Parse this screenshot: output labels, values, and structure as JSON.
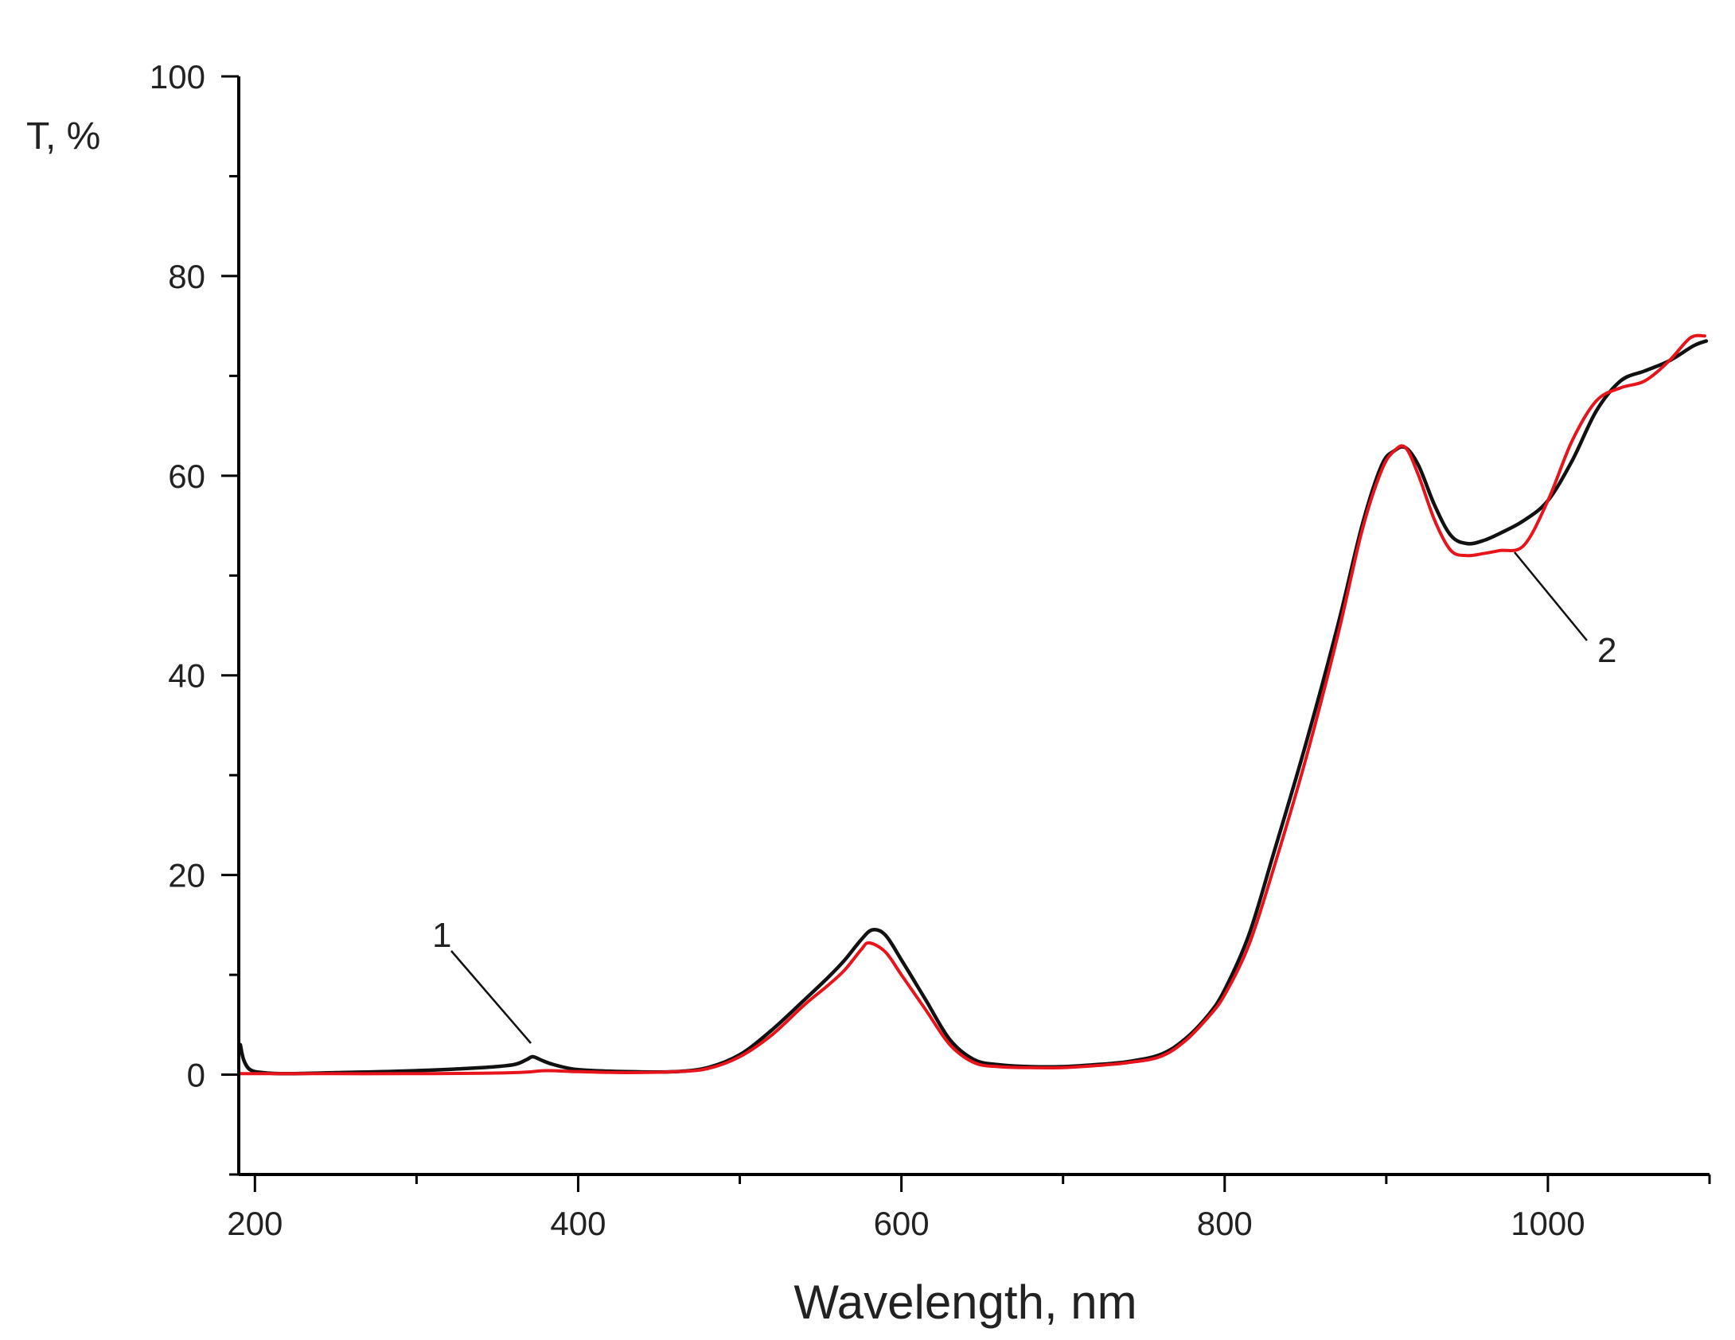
{
  "chart_data": {
    "type": "line",
    "xlabel": "Wavelength, nm",
    "ylabel": "T, %",
    "xlim": [
      190,
      1100
    ],
    "ylim": [
      -10,
      100
    ],
    "x_ticks": [
      200,
      400,
      600,
      800,
      1000
    ],
    "y_ticks": [
      0,
      20,
      40,
      60,
      80,
      100
    ],
    "x_minor_step": 100,
    "y_minor_step": 10,
    "grid": false,
    "colors": {
      "axis": "#000000",
      "series_1": "#111111",
      "series_2": "#e8141c"
    },
    "series": [
      {
        "label": "1",
        "x": [
          191,
          193,
          197,
          205,
          220,
          250,
          300,
          340,
          360,
          368,
          372,
          378,
          385,
          400,
          430,
          460,
          480,
          500,
          520,
          540,
          555,
          565,
          575,
          582,
          590,
          600,
          615,
          630,
          645,
          660,
          680,
          700,
          720,
          740,
          760,
          775,
          790,
          800,
          815,
          830,
          850,
          870,
          885,
          897,
          905,
          912,
          920,
          930,
          940,
          950,
          960,
          970,
          985,
          1000,
          1015,
          1030,
          1045,
          1060,
          1075,
          1090,
          1098
        ],
        "y": [
          3.0,
          1.5,
          0.5,
          0.2,
          0.1,
          0.2,
          0.4,
          0.7,
          1.0,
          1.5,
          1.8,
          1.4,
          1.0,
          0.5,
          0.3,
          0.3,
          0.7,
          2.0,
          4.5,
          7.5,
          9.8,
          11.5,
          13.5,
          14.5,
          14.0,
          11.5,
          7.5,
          3.5,
          1.5,
          1.0,
          0.8,
          0.8,
          1.0,
          1.3,
          2.0,
          3.5,
          6.0,
          8.5,
          14.0,
          22.0,
          33.0,
          45.0,
          55.0,
          61.0,
          62.5,
          62.8,
          61.0,
          57.0,
          54.0,
          53.2,
          53.5,
          54.2,
          55.5,
          57.5,
          61.5,
          66.5,
          69.5,
          70.5,
          71.5,
          73.0,
          73.5
        ]
      },
      {
        "label": "2",
        "x": [
          191,
          200,
          250,
          300,
          360,
          380,
          400,
          430,
          460,
          480,
          500,
          520,
          540,
          555,
          565,
          575,
          580,
          590,
          600,
          615,
          630,
          645,
          660,
          680,
          700,
          720,
          740,
          760,
          775,
          790,
          800,
          815,
          830,
          850,
          870,
          885,
          897,
          905,
          912,
          920,
          930,
          940,
          950,
          960,
          970,
          985,
          1000,
          1015,
          1030,
          1045,
          1060,
          1075,
          1088,
          1097
        ],
        "y": [
          0.1,
          0.1,
          0.1,
          0.1,
          0.2,
          0.4,
          0.3,
          0.2,
          0.3,
          0.6,
          1.8,
          4.0,
          7.0,
          9.0,
          10.5,
          12.5,
          13.2,
          12.3,
          10.0,
          6.5,
          3.0,
          1.2,
          0.8,
          0.7,
          0.7,
          0.9,
          1.2,
          1.8,
          3.3,
          5.8,
          8.0,
          13.0,
          20.5,
          31.5,
          44.0,
          54.5,
          60.5,
          62.5,
          62.8,
          60.0,
          55.5,
          52.5,
          52.0,
          52.2,
          52.5,
          53.0,
          57.5,
          63.5,
          67.5,
          68.8,
          69.5,
          71.5,
          73.8,
          74.0
        ]
      }
    ]
  }
}
